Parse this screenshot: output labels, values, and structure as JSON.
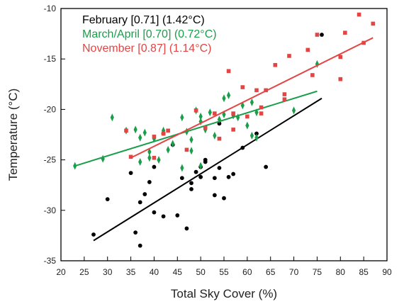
{
  "chart_data": {
    "type": "scatter",
    "xlabel": "Total Sky Cover (%)",
    "ylabel": "Temperature (°C)",
    "xlim": [
      20,
      90
    ],
    "ylim": [
      -35,
      -10
    ],
    "x_ticks": [
      "20",
      "25",
      "30",
      "35",
      "40",
      "45",
      "50",
      "55",
      "60",
      "65",
      "70",
      "75",
      "80",
      "85",
      "90"
    ],
    "y_ticks": [
      "-10",
      "-15",
      "-20",
      "-25",
      "-30",
      "-35"
    ],
    "x_tick_values": [
      20,
      25,
      30,
      35,
      40,
      45,
      50,
      55,
      60,
      65,
      70,
      75,
      80,
      85,
      90
    ],
    "y_tick_values": [
      -10,
      -15,
      -20,
      -25,
      -30,
      -35
    ],
    "grid": false,
    "legend_position": "top-left",
    "series": [
      {
        "name": "February [0.71]",
        "stat": "(1.42°C)",
        "color": "#000000",
        "marker": "circle",
        "trendline": {
          "x": [
            27,
            76
          ],
          "y": [
            -33.0,
            -18.9
          ]
        },
        "points": [
          [
            27,
            -32.4
          ],
          [
            30,
            -28.9
          ],
          [
            35,
            -26.3
          ],
          [
            36,
            -32.2
          ],
          [
            37,
            -33.5
          ],
          [
            37,
            -29.2
          ],
          [
            38,
            -28.4
          ],
          [
            39,
            -27.2
          ],
          [
            40,
            -25.7
          ],
          [
            40,
            -30.2
          ],
          [
            42,
            -30.6
          ],
          [
            42,
            -22.4
          ],
          [
            44,
            -23.5
          ],
          [
            45,
            -30.5
          ],
          [
            46,
            -26.8
          ],
          [
            47,
            -31.8
          ],
          [
            48,
            -27.3
          ],
          [
            48,
            -27.9
          ],
          [
            49,
            -26.2
          ],
          [
            50,
            -25.7
          ],
          [
            50,
            -26.7
          ],
          [
            51,
            -25.2
          ],
          [
            51,
            -25.0
          ],
          [
            53,
            -26.8
          ],
          [
            53,
            -28.5
          ],
          [
            54,
            -25.8
          ],
          [
            54,
            -21.4
          ],
          [
            55,
            -28.8
          ],
          [
            56,
            -26.7
          ],
          [
            57,
            -26.4
          ],
          [
            59,
            -23.8
          ],
          [
            62,
            -22.4
          ],
          [
            64,
            -25.7
          ],
          [
            76,
            -12.6
          ]
        ]
      },
      {
        "name": "March/April [0.70]",
        "stat": "(0.72°C)",
        "color": "#1a9e4a",
        "marker": "diamond",
        "trendline": {
          "x": [
            23,
            75
          ],
          "y": [
            -25.6,
            -18.2
          ]
        },
        "points": [
          [
            23,
            -25.6
          ],
          [
            29,
            -24.9
          ],
          [
            31,
            -20.8
          ],
          [
            34,
            -22.1
          ],
          [
            36,
            -22.0
          ],
          [
            37,
            -22.8
          ],
          [
            37,
            -25.2
          ],
          [
            38,
            -22.3
          ],
          [
            39,
            -24.2
          ],
          [
            39,
            -24.8
          ],
          [
            40,
            -22.9
          ],
          [
            41,
            -25.0
          ],
          [
            42,
            -22.1
          ],
          [
            43,
            -24.0
          ],
          [
            44,
            -23.4
          ],
          [
            46,
            -20.8
          ],
          [
            46,
            -25.8
          ],
          [
            47,
            -22.2
          ],
          [
            48,
            -23.0
          ],
          [
            48,
            -24.1
          ],
          [
            49,
            -20.1
          ],
          [
            50,
            -20.7
          ],
          [
            50,
            -21.2
          ],
          [
            50,
            -25.6
          ],
          [
            51,
            -22.0
          ],
          [
            52,
            -20.3
          ],
          [
            53,
            -22.6
          ],
          [
            54,
            -21.0
          ],
          [
            55,
            -20.5
          ],
          [
            55,
            -18.9
          ],
          [
            56,
            -18.6
          ],
          [
            57,
            -20.6
          ],
          [
            58,
            -20.8
          ],
          [
            59,
            -19.6
          ],
          [
            60,
            -21.6
          ],
          [
            61,
            -19.3
          ],
          [
            61,
            -22.6
          ],
          [
            62,
            -20.3
          ],
          [
            62,
            -22.8
          ],
          [
            70,
            -20.1
          ],
          [
            75,
            -15.5
          ]
        ]
      },
      {
        "name": "November [0.87]",
        "stat": "(1.14°C)",
        "color": "#e34545",
        "marker": "square",
        "trendline": {
          "x": [
            35,
            87
          ],
          "y": [
            -24.8,
            -12.9
          ]
        },
        "points": [
          [
            34,
            -22.1
          ],
          [
            35,
            -24.7
          ],
          [
            40,
            -22.7
          ],
          [
            40,
            -24.8
          ],
          [
            42,
            -22.4
          ],
          [
            43,
            -22.1
          ],
          [
            47,
            -24.0
          ],
          [
            49,
            -20.1
          ],
          [
            51,
            -21.8
          ],
          [
            53,
            -20.4
          ],
          [
            54,
            -22.9
          ],
          [
            56,
            -16.2
          ],
          [
            57,
            -20.4
          ],
          [
            57,
            -22.0
          ],
          [
            59,
            -17.8
          ],
          [
            60,
            -20.7
          ],
          [
            62,
            -18.1
          ],
          [
            63,
            -19.8
          ],
          [
            63,
            -20.4
          ],
          [
            64,
            -18.1
          ],
          [
            66,
            -15.6
          ],
          [
            68,
            -18.5
          ],
          [
            68,
            -19.0
          ],
          [
            69,
            -14.7
          ],
          [
            73,
            -14.1
          ],
          [
            74,
            -16.6
          ],
          [
            75,
            -12.6
          ],
          [
            80,
            -14.8
          ],
          [
            80,
            -17.0
          ],
          [
            81,
            -12.4
          ],
          [
            84,
            -10.6
          ],
          [
            85,
            -13.4
          ],
          [
            87,
            -11.5
          ]
        ]
      }
    ]
  }
}
